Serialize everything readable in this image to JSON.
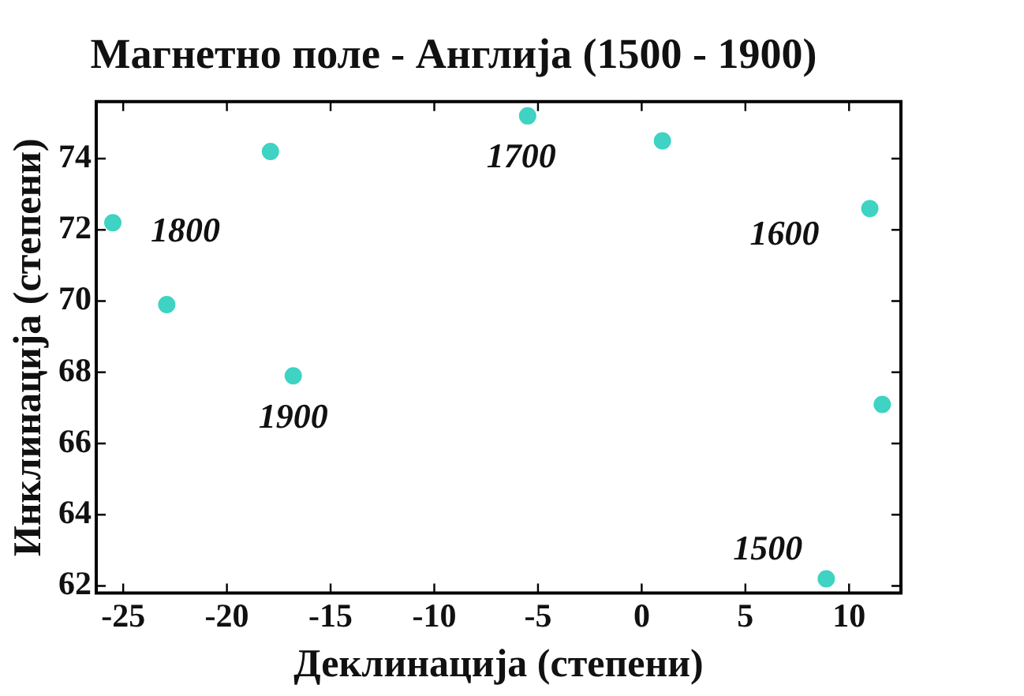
{
  "chart_data": {
    "type": "scatter",
    "title": "Магнетно поле - Англија (1500 - 1900)",
    "xlabel": "Деклинација (степени)",
    "ylabel": "Инклинација (степени)",
    "x": [
      8.9,
      11.6,
      11.0,
      1.0,
      -5.5,
      -17.9,
      -25.5,
      -22.9,
      -16.8
    ],
    "values": [
      62.2,
      67.1,
      72.6,
      74.5,
      75.2,
      74.2,
      72.2,
      69.9,
      67.9
    ],
    "color": "#3fd3c3",
    "marker": "circle",
    "grid": false,
    "xlim": [
      -26.3,
      12.5
    ],
    "xticks": [
      -25,
      -20,
      -15,
      -10,
      -5,
      0,
      5,
      10
    ],
    "ylim": [
      61.8,
      75.6
    ],
    "yticks": [
      62,
      64,
      66,
      68,
      70,
      72,
      74
    ],
    "annotations": [
      {
        "text": "1500",
        "x": 8.9,
        "y": 62.2
      },
      {
        "text": "1600",
        "x": 11.0,
        "y": 72.6
      },
      {
        "text": "1700",
        "x": -5.5,
        "y": 75.2
      },
      {
        "text": "1800",
        "x": -25.5,
        "y": 72.2
      },
      {
        "text": "1900",
        "x": -16.8,
        "y": 67.9
      }
    ]
  }
}
